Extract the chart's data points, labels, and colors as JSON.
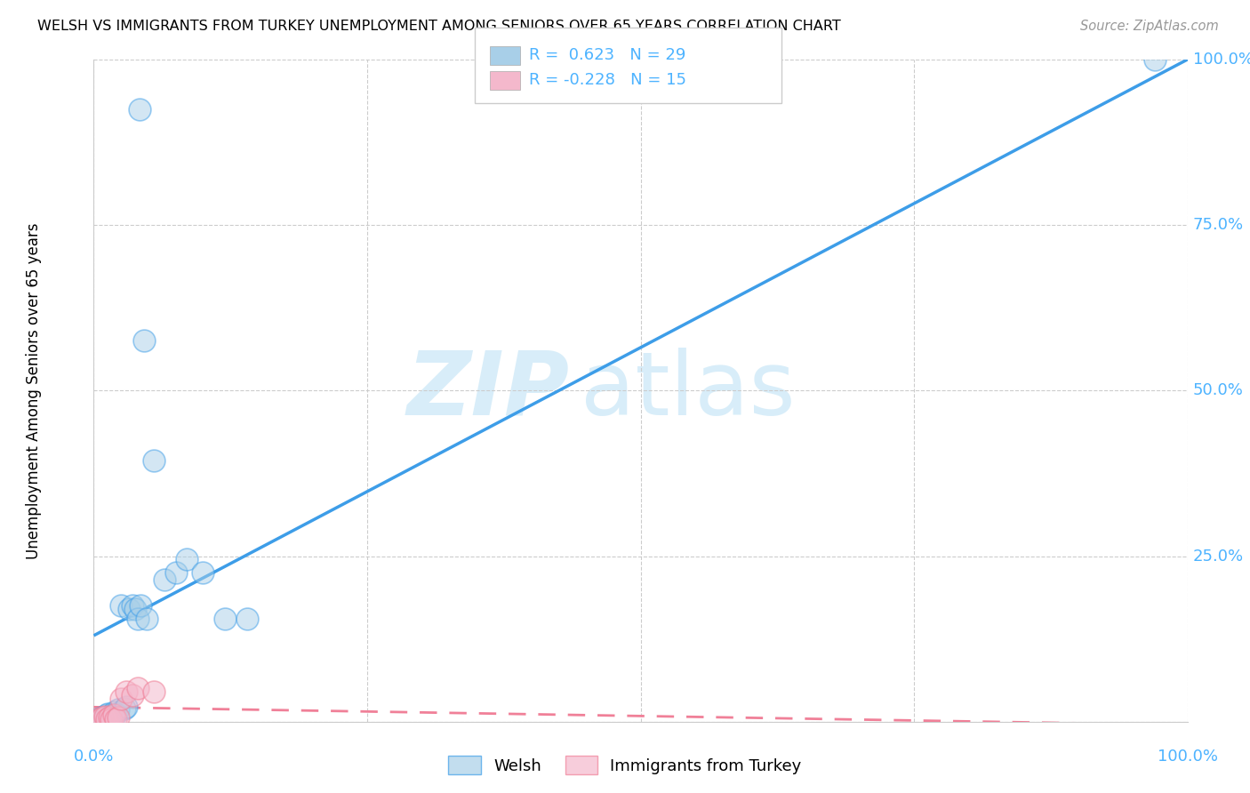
{
  "title": "WELSH VS IMMIGRANTS FROM TURKEY UNEMPLOYMENT AMONG SENIORS OVER 65 YEARS CORRELATION CHART",
  "source": "Source: ZipAtlas.com",
  "ylabel": "Unemployment Among Seniors over 65 years",
  "legend_welsh": "Welsh",
  "legend_turkey": "Immigrants from Turkey",
  "r_welsh": "0.623",
  "n_welsh": "29",
  "r_turkey": "-0.228",
  "n_turkey": "15",
  "welsh_dot_color": "#a8cfe8",
  "turkey_dot_color": "#f4b8cc",
  "welsh_line_color": "#3d9de8",
  "turkey_line_color": "#f08098",
  "axis_color": "#4db3ff",
  "background_color": "#ffffff",
  "grid_color": "#cccccc",
  "welsh_x": [
    0.005,
    0.008,
    0.01,
    0.012,
    0.013,
    0.015,
    0.016,
    0.018,
    0.02,
    0.022,
    0.025,
    0.028,
    0.03,
    0.032,
    0.035,
    0.038,
    0.04,
    0.043,
    0.046,
    0.048,
    0.055,
    0.065,
    0.075,
    0.085,
    0.1,
    0.12,
    0.14,
    0.97,
    0.042
  ],
  "welsh_y": [
    0.005,
    0.006,
    0.008,
    0.01,
    0.012,
    0.008,
    0.01,
    0.015,
    0.012,
    0.018,
    0.175,
    0.02,
    0.022,
    0.17,
    0.175,
    0.17,
    0.155,
    0.175,
    0.575,
    0.155,
    0.395,
    0.215,
    0.225,
    0.245,
    0.225,
    0.155,
    0.155,
    1.0,
    0.925
  ],
  "turkey_x": [
    0.004,
    0.006,
    0.008,
    0.01,
    0.012,
    0.014,
    0.016,
    0.018,
    0.02,
    0.022,
    0.025,
    0.03,
    0.035,
    0.04,
    0.055
  ],
  "turkey_y": [
    0.004,
    0.004,
    0.006,
    0.008,
    0.004,
    0.006,
    0.004,
    0.01,
    0.004,
    0.006,
    0.035,
    0.045,
    0.04,
    0.05,
    0.045
  ],
  "welsh_line_x0": 0.0,
  "welsh_line_y0": 0.13,
  "welsh_line_x1": 1.0,
  "welsh_line_y1": 1.0,
  "turkey_line_x0": 0.0,
  "turkey_line_y0": 0.022,
  "turkey_line_x1": 1.0,
  "turkey_line_y1": -0.005,
  "xlim": [
    0.0,
    1.0
  ],
  "ylim": [
    0.0,
    1.0
  ],
  "xticks": [
    0.0,
    0.25,
    0.5,
    0.75,
    1.0
  ],
  "yticks": [
    0.0,
    0.25,
    0.5,
    0.75,
    1.0
  ],
  "xticklabels": [
    "0.0%",
    "",
    "",
    "",
    "100.0%"
  ],
  "yticklabels": [
    "",
    "25.0%",
    "50.0%",
    "75.0%",
    "100.0%"
  ]
}
